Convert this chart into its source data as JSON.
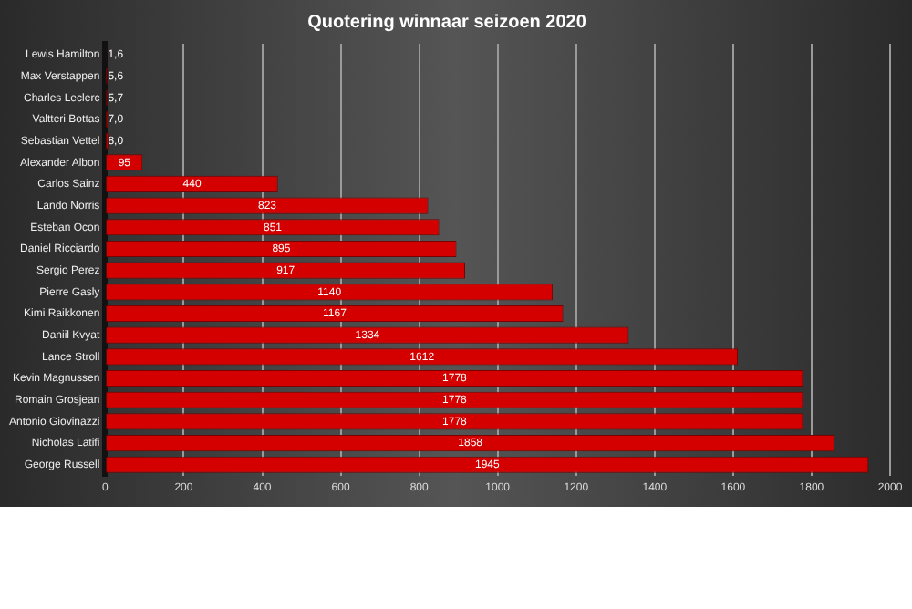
{
  "chart_data": {
    "type": "bar",
    "orientation": "horizontal",
    "title": "Quotering winnaar seizoen 2020",
    "categories": [
      "Lewis Hamilton",
      "Max Verstappen",
      "Charles Leclerc",
      "Valtteri Bottas",
      "Sebastian Vettel",
      "Alexander Albon",
      "Carlos Sainz",
      "Lando Norris",
      "Esteban Ocon",
      "Daniel Ricciardo",
      "Sergio Perez",
      "Pierre Gasly",
      "Kimi Raikkonen",
      "Daniil Kvyat",
      "Lance Stroll",
      "Kevin Magnussen",
      "Romain Grosjean",
      "Antonio Giovinazzi",
      "Nicholas Latifi",
      "George Russell"
    ],
    "values": [
      1.6,
      5.6,
      5.7,
      7.0,
      8.0,
      95,
      440,
      823,
      851,
      895,
      917,
      1140,
      1167,
      1334,
      1612,
      1778,
      1778,
      1778,
      1858,
      1945
    ],
    "value_labels": [
      "1,6",
      "5,6",
      "5,7",
      "7,0",
      "8,0",
      "95",
      "440",
      "823",
      "851",
      "895",
      "917",
      "1140",
      "1167",
      "1334",
      "1612",
      "1778",
      "1778",
      "1778",
      "1858",
      "1945"
    ],
    "color": "#d40000",
    "xlim": [
      0,
      2000
    ],
    "xticks": [
      0,
      200,
      400,
      600,
      800,
      1000,
      1200,
      1400,
      1600,
      1800,
      2000
    ],
    "grid": "x",
    "legend": false
  }
}
